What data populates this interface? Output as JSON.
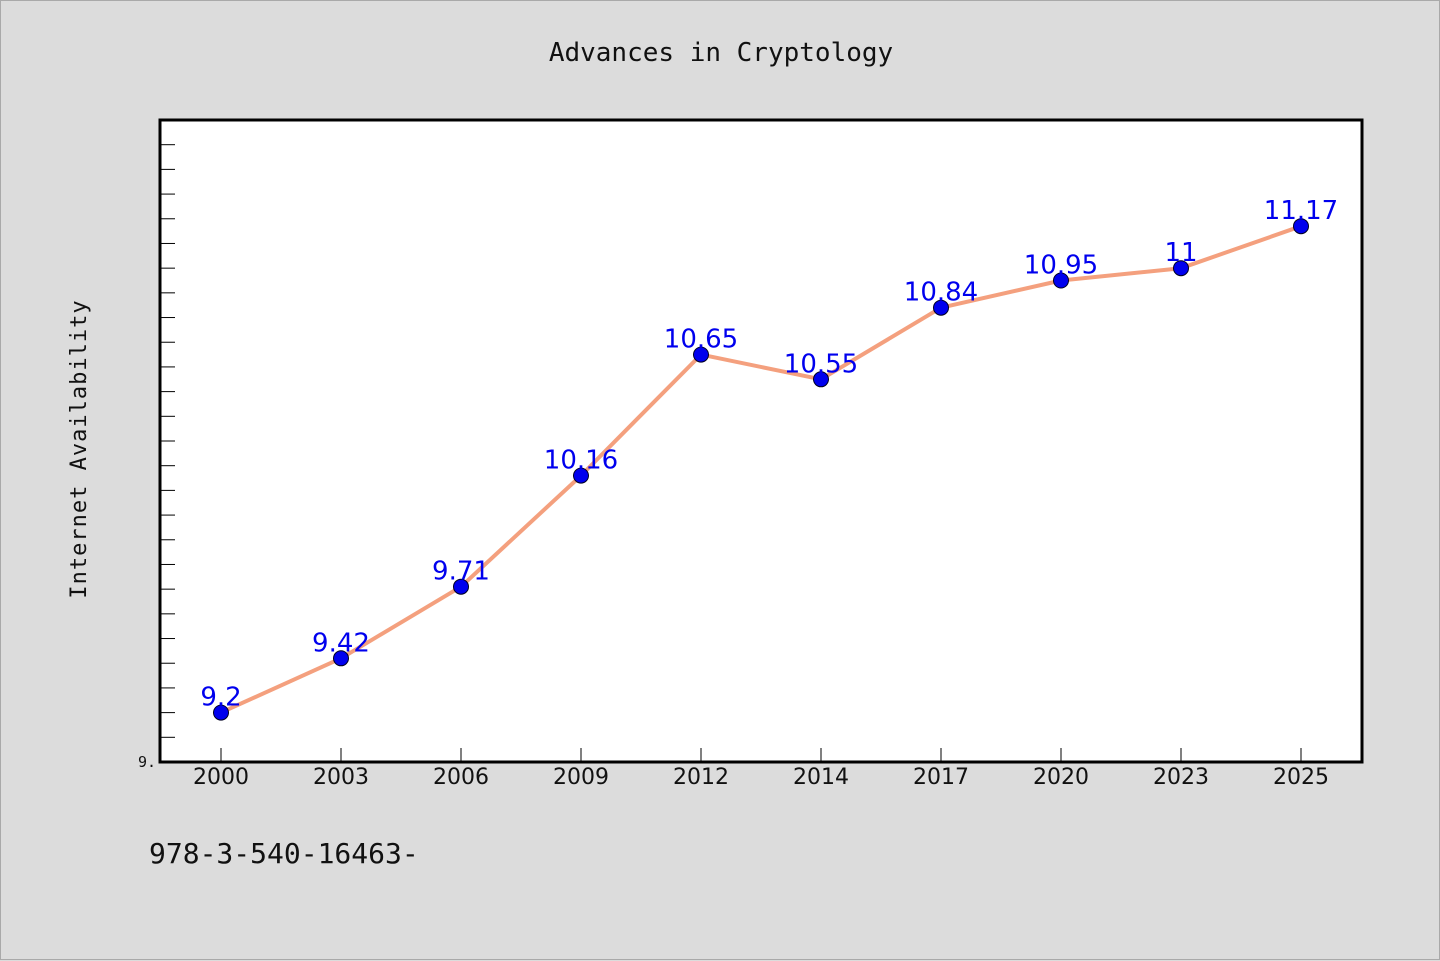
{
  "chart_data": {
    "type": "line",
    "title": "Advances in Cryptology",
    "xlabel": "",
    "ylabel": "Internet Availability",
    "categories": [
      "2000",
      "2003",
      "2006",
      "2009",
      "2012",
      "2014",
      "2017",
      "2020",
      "2023",
      "2025"
    ],
    "values": [
      9.2,
      9.42,
      9.71,
      10.16,
      10.65,
      10.55,
      10.84,
      10.95,
      11,
      11.17
    ],
    "data_labels": [
      "9.2",
      "9.42",
      "9.71",
      "10.16",
      "10.65",
      "10.55",
      "10.84",
      "10.95",
      "11",
      "11.17"
    ],
    "ylim": [
      9.0,
      11.6
    ],
    "y_visible_tick_label": "9.",
    "grid": false,
    "legend": "none",
    "line_color": "#f4a07e",
    "marker_color": "#0000ee",
    "label_color": "#0000ee"
  },
  "footer_text": "978-3-540-16463-"
}
